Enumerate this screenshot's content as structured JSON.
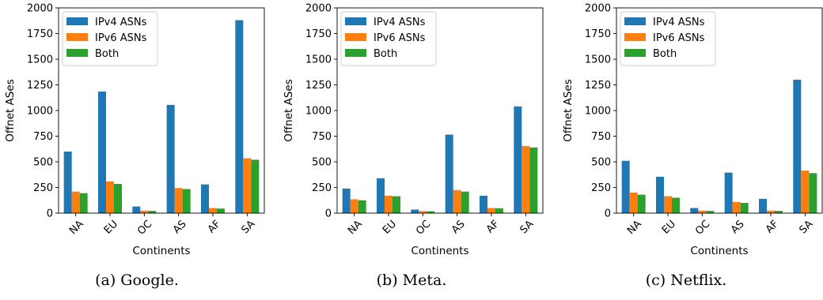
{
  "chart_data": [
    {
      "type": "bar",
      "categories": [
        "NA",
        "EU",
        "OC",
        "AS",
        "AF",
        "SA"
      ],
      "series": [
        {
          "name": "IPv4 ASNs",
          "values": [
            600,
            1185,
            65,
            1055,
            280,
            1880
          ],
          "color": "#1f77b4"
        },
        {
          "name": "IPv6 ASNs",
          "values": [
            210,
            310,
            25,
            245,
            50,
            535
          ],
          "color": "#ff7f0e"
        },
        {
          "name": "Both",
          "values": [
            195,
            285,
            22,
            235,
            45,
            520
          ],
          "color": "#2ca02c"
        }
      ],
      "xlabel": "Continents",
      "ylabel": "Offnet ASes",
      "ylim": [
        0,
        2000
      ],
      "yticks": [
        0,
        250,
        500,
        750,
        1000,
        1250,
        1500,
        1750,
        2000
      ],
      "ytick_labels": [
        "0",
        "250",
        "500",
        "750",
        "1000",
        "1250",
        "1500",
        "1750",
        "2000"
      ],
      "legend": "top-left",
      "grid": false,
      "caption": "(a) Google."
    },
    {
      "type": "bar",
      "categories": [
        "NA",
        "EU",
        "OC",
        "AS",
        "AF",
        "SA"
      ],
      "series": [
        {
          "name": "IPv4 ASNs",
          "values": [
            240,
            340,
            35,
            765,
            170,
            1040
          ],
          "color": "#1f77b4"
        },
        {
          "name": "IPv6 ASNs",
          "values": [
            135,
            170,
            20,
            225,
            50,
            655
          ],
          "color": "#ff7f0e"
        },
        {
          "name": "Both",
          "values": [
            125,
            165,
            18,
            210,
            48,
            640
          ],
          "color": "#2ca02c"
        }
      ],
      "xlabel": "Continents",
      "ylabel": "Offnet ASes",
      "ylim": [
        0,
        2000
      ],
      "yticks": [
        0,
        250,
        500,
        750,
        1000,
        1250,
        1500,
        1750,
        2000
      ],
      "ytick_labels": [
        "0",
        "250",
        "500",
        "750",
        "1000",
        "1250",
        "1500",
        "1750",
        "2000"
      ],
      "legend": "top-left",
      "grid": false,
      "caption": "(b) Meta."
    },
    {
      "type": "bar",
      "categories": [
        "NA",
        "EU",
        "OC",
        "AS",
        "AF",
        "SA"
      ],
      "series": [
        {
          "name": "IPv4 ASNs",
          "values": [
            510,
            355,
            50,
            395,
            140,
            1300
          ],
          "color": "#1f77b4"
        },
        {
          "name": "IPv6 ASNs",
          "values": [
            200,
            165,
            25,
            110,
            25,
            415
          ],
          "color": "#ff7f0e"
        },
        {
          "name": "Both",
          "values": [
            180,
            150,
            22,
            100,
            22,
            390
          ],
          "color": "#2ca02c"
        }
      ],
      "xlabel": "Continents",
      "ylabel": "Offnet ASes",
      "ylim": [
        0,
        2000
      ],
      "yticks": [
        0,
        250,
        500,
        750,
        1000,
        1250,
        1500,
        1750,
        2000
      ],
      "ytick_labels": [
        "0",
        "250",
        "500",
        "750",
        "1000",
        "1250",
        "1500",
        "1750",
        "2000"
      ],
      "legend": "top-left",
      "grid": false,
      "caption": "(c) Netflix."
    }
  ]
}
